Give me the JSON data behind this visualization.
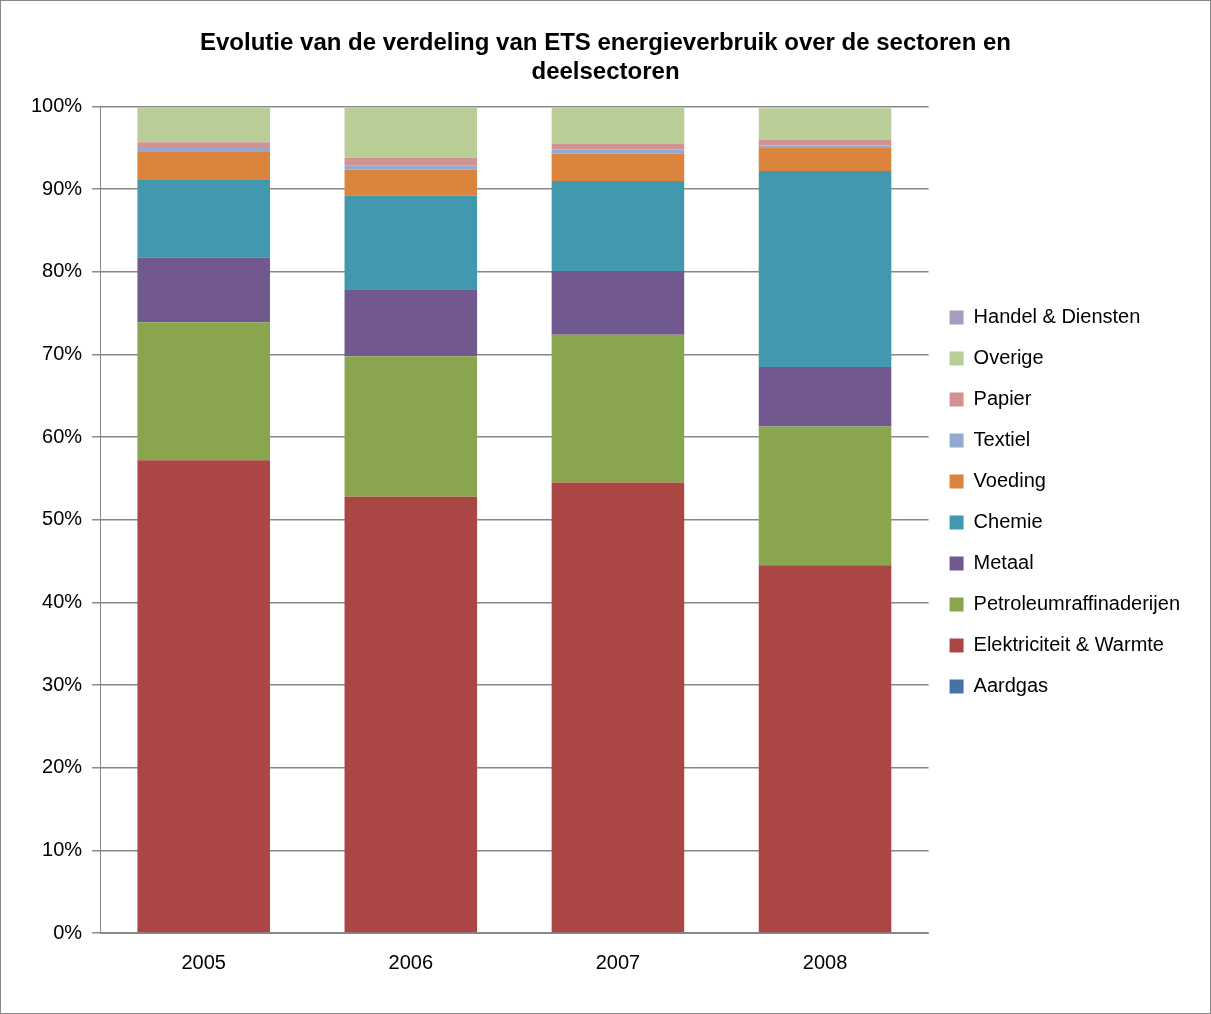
{
  "chart_data": {
    "type": "bar",
    "stacked": true,
    "title": "Evolutie van de verdeling van ETS energieverbruik over de sectoren en deelsectoren",
    "categories": [
      "2005",
      "2006",
      "2007",
      "2008"
    ],
    "series": [
      {
        "name": "Aardgas",
        "color": "#4572a7",
        "values": [
          0,
          0,
          0,
          0.1
        ]
      },
      {
        "name": "Elektriciteit & Warmte",
        "color": "#aa4643",
        "values": [
          57.2,
          52.8,
          54.5,
          44.4
        ]
      },
      {
        "name": "Petroleumraffinaderijen",
        "color": "#89a54e",
        "values": [
          16.7,
          17.0,
          17.9,
          16.8
        ]
      },
      {
        "name": "Metaal",
        "color": "#71588f",
        "values": [
          7.8,
          8.1,
          7.7,
          7.2
        ]
      },
      {
        "name": "Chemie",
        "color": "#4198af",
        "values": [
          9.5,
          11.3,
          10.9,
          23.7
        ]
      },
      {
        "name": "Voeding",
        "color": "#db843d",
        "values": [
          3.3,
          3.2,
          3.3,
          2.8
        ]
      },
      {
        "name": "Textiel",
        "color": "#93a9cf",
        "values": [
          0.5,
          0.5,
          0.5,
          0.3
        ]
      },
      {
        "name": "Papier",
        "color": "#d19392",
        "values": [
          0.7,
          0.9,
          0.7,
          0.7
        ]
      },
      {
        "name": "Overige",
        "color": "#b9cd96",
        "values": [
          4.2,
          6.1,
          4.4,
          3.8
        ]
      },
      {
        "name": "Handel & Diensten",
        "color": "#a99bbd",
        "values": [
          null,
          null,
          null,
          null
        ]
      }
    ],
    "ylim": [
      0,
      100
    ],
    "yticks": [
      {
        "value": 0,
        "label": "0%"
      },
      {
        "value": 10,
        "label": "10%"
      },
      {
        "value": 20,
        "label": "20%"
      },
      {
        "value": 30,
        "label": "30%"
      },
      {
        "value": 40,
        "label": "40%"
      },
      {
        "value": 50,
        "label": "50%"
      },
      {
        "value": 60,
        "label": "60%"
      },
      {
        "value": 70,
        "label": "70%"
      },
      {
        "value": 80,
        "label": "80%"
      },
      {
        "value": 90,
        "label": "90%"
      },
      {
        "value": 100,
        "label": "100%"
      }
    ],
    "grid": "y",
    "legend": "right"
  }
}
